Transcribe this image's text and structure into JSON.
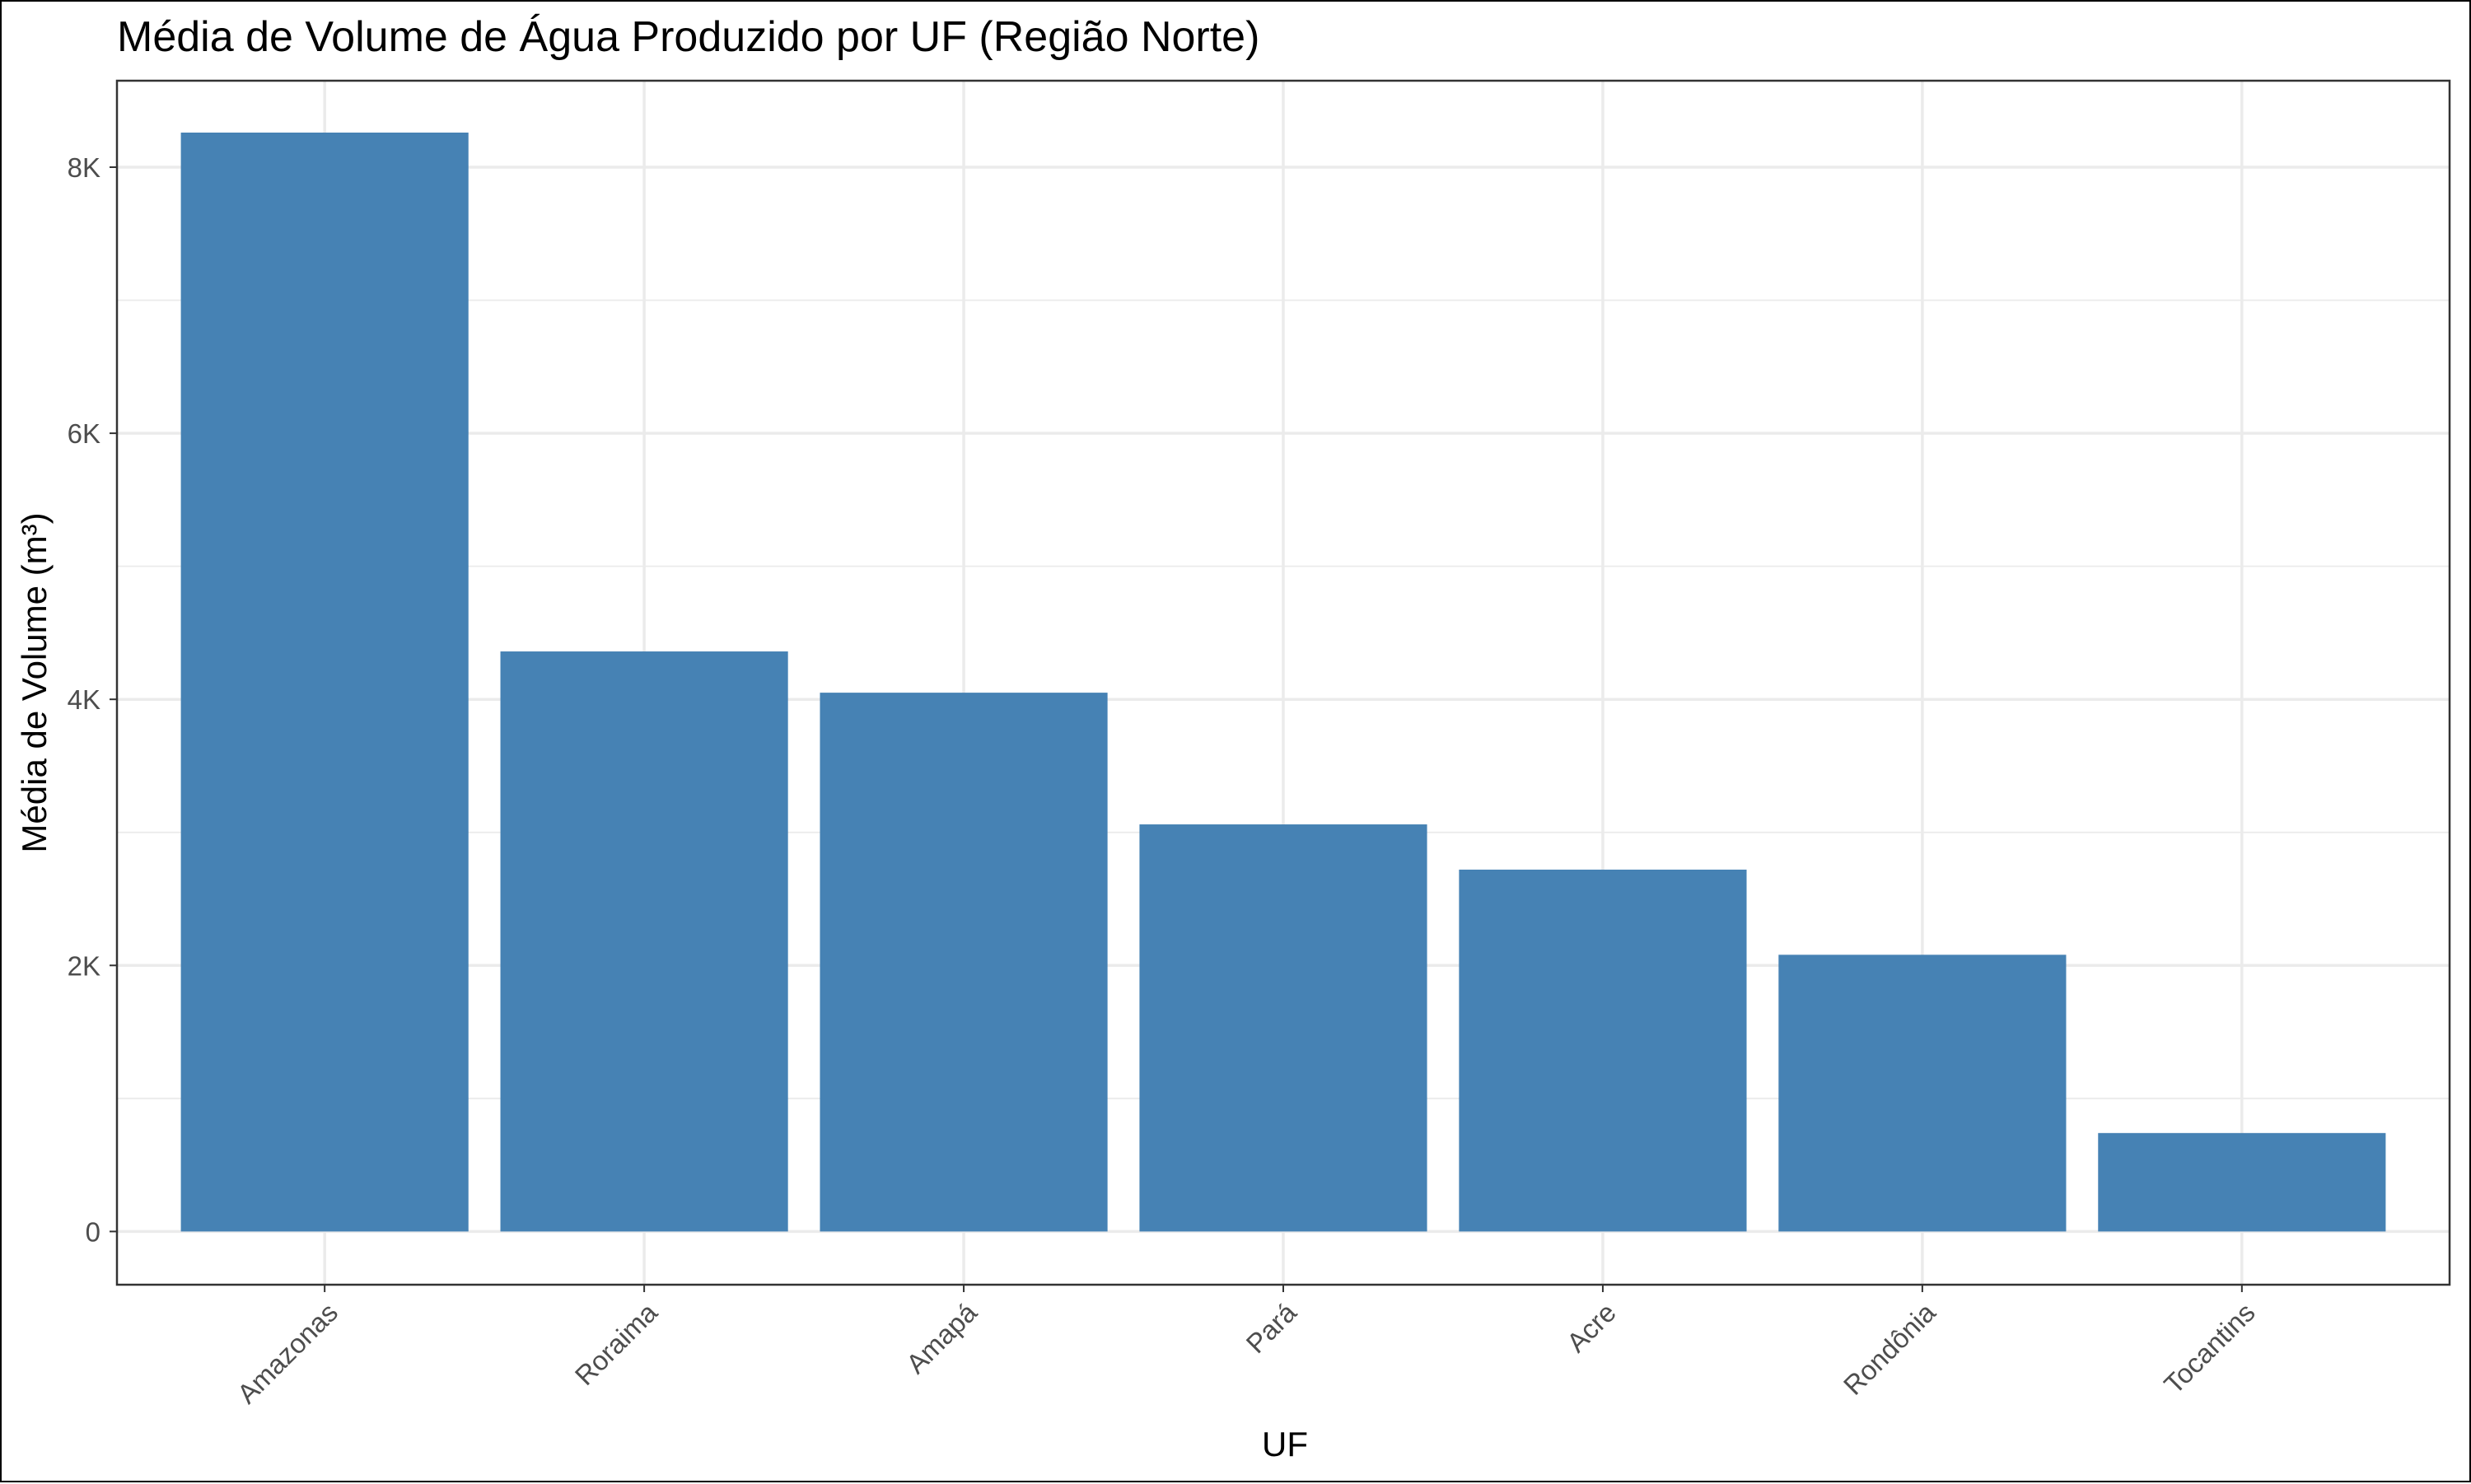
{
  "chart_data": {
    "type": "bar",
    "title": "Média de Volume de Água Produzido por UF (Região Norte)",
    "xlabel": "UF",
    "ylabel": "Média de Volume (m³)",
    "categories": [
      "Amazonas",
      "Roraima",
      "Amapá",
      "Pará",
      "Acre",
      "Rondônia",
      "Tocantins"
    ],
    "values": [
      8260,
      4360,
      4050,
      3060,
      2720,
      2080,
      740
    ],
    "ylim": [
      -400,
      8650
    ],
    "yticks": [
      0,
      2000,
      4000,
      6000,
      8000
    ],
    "ytick_labels": [
      "0",
      "2K",
      "4K",
      "6K",
      "8K"
    ],
    "bar_color": "#4682b4",
    "grid": true,
    "legend": "none"
  }
}
